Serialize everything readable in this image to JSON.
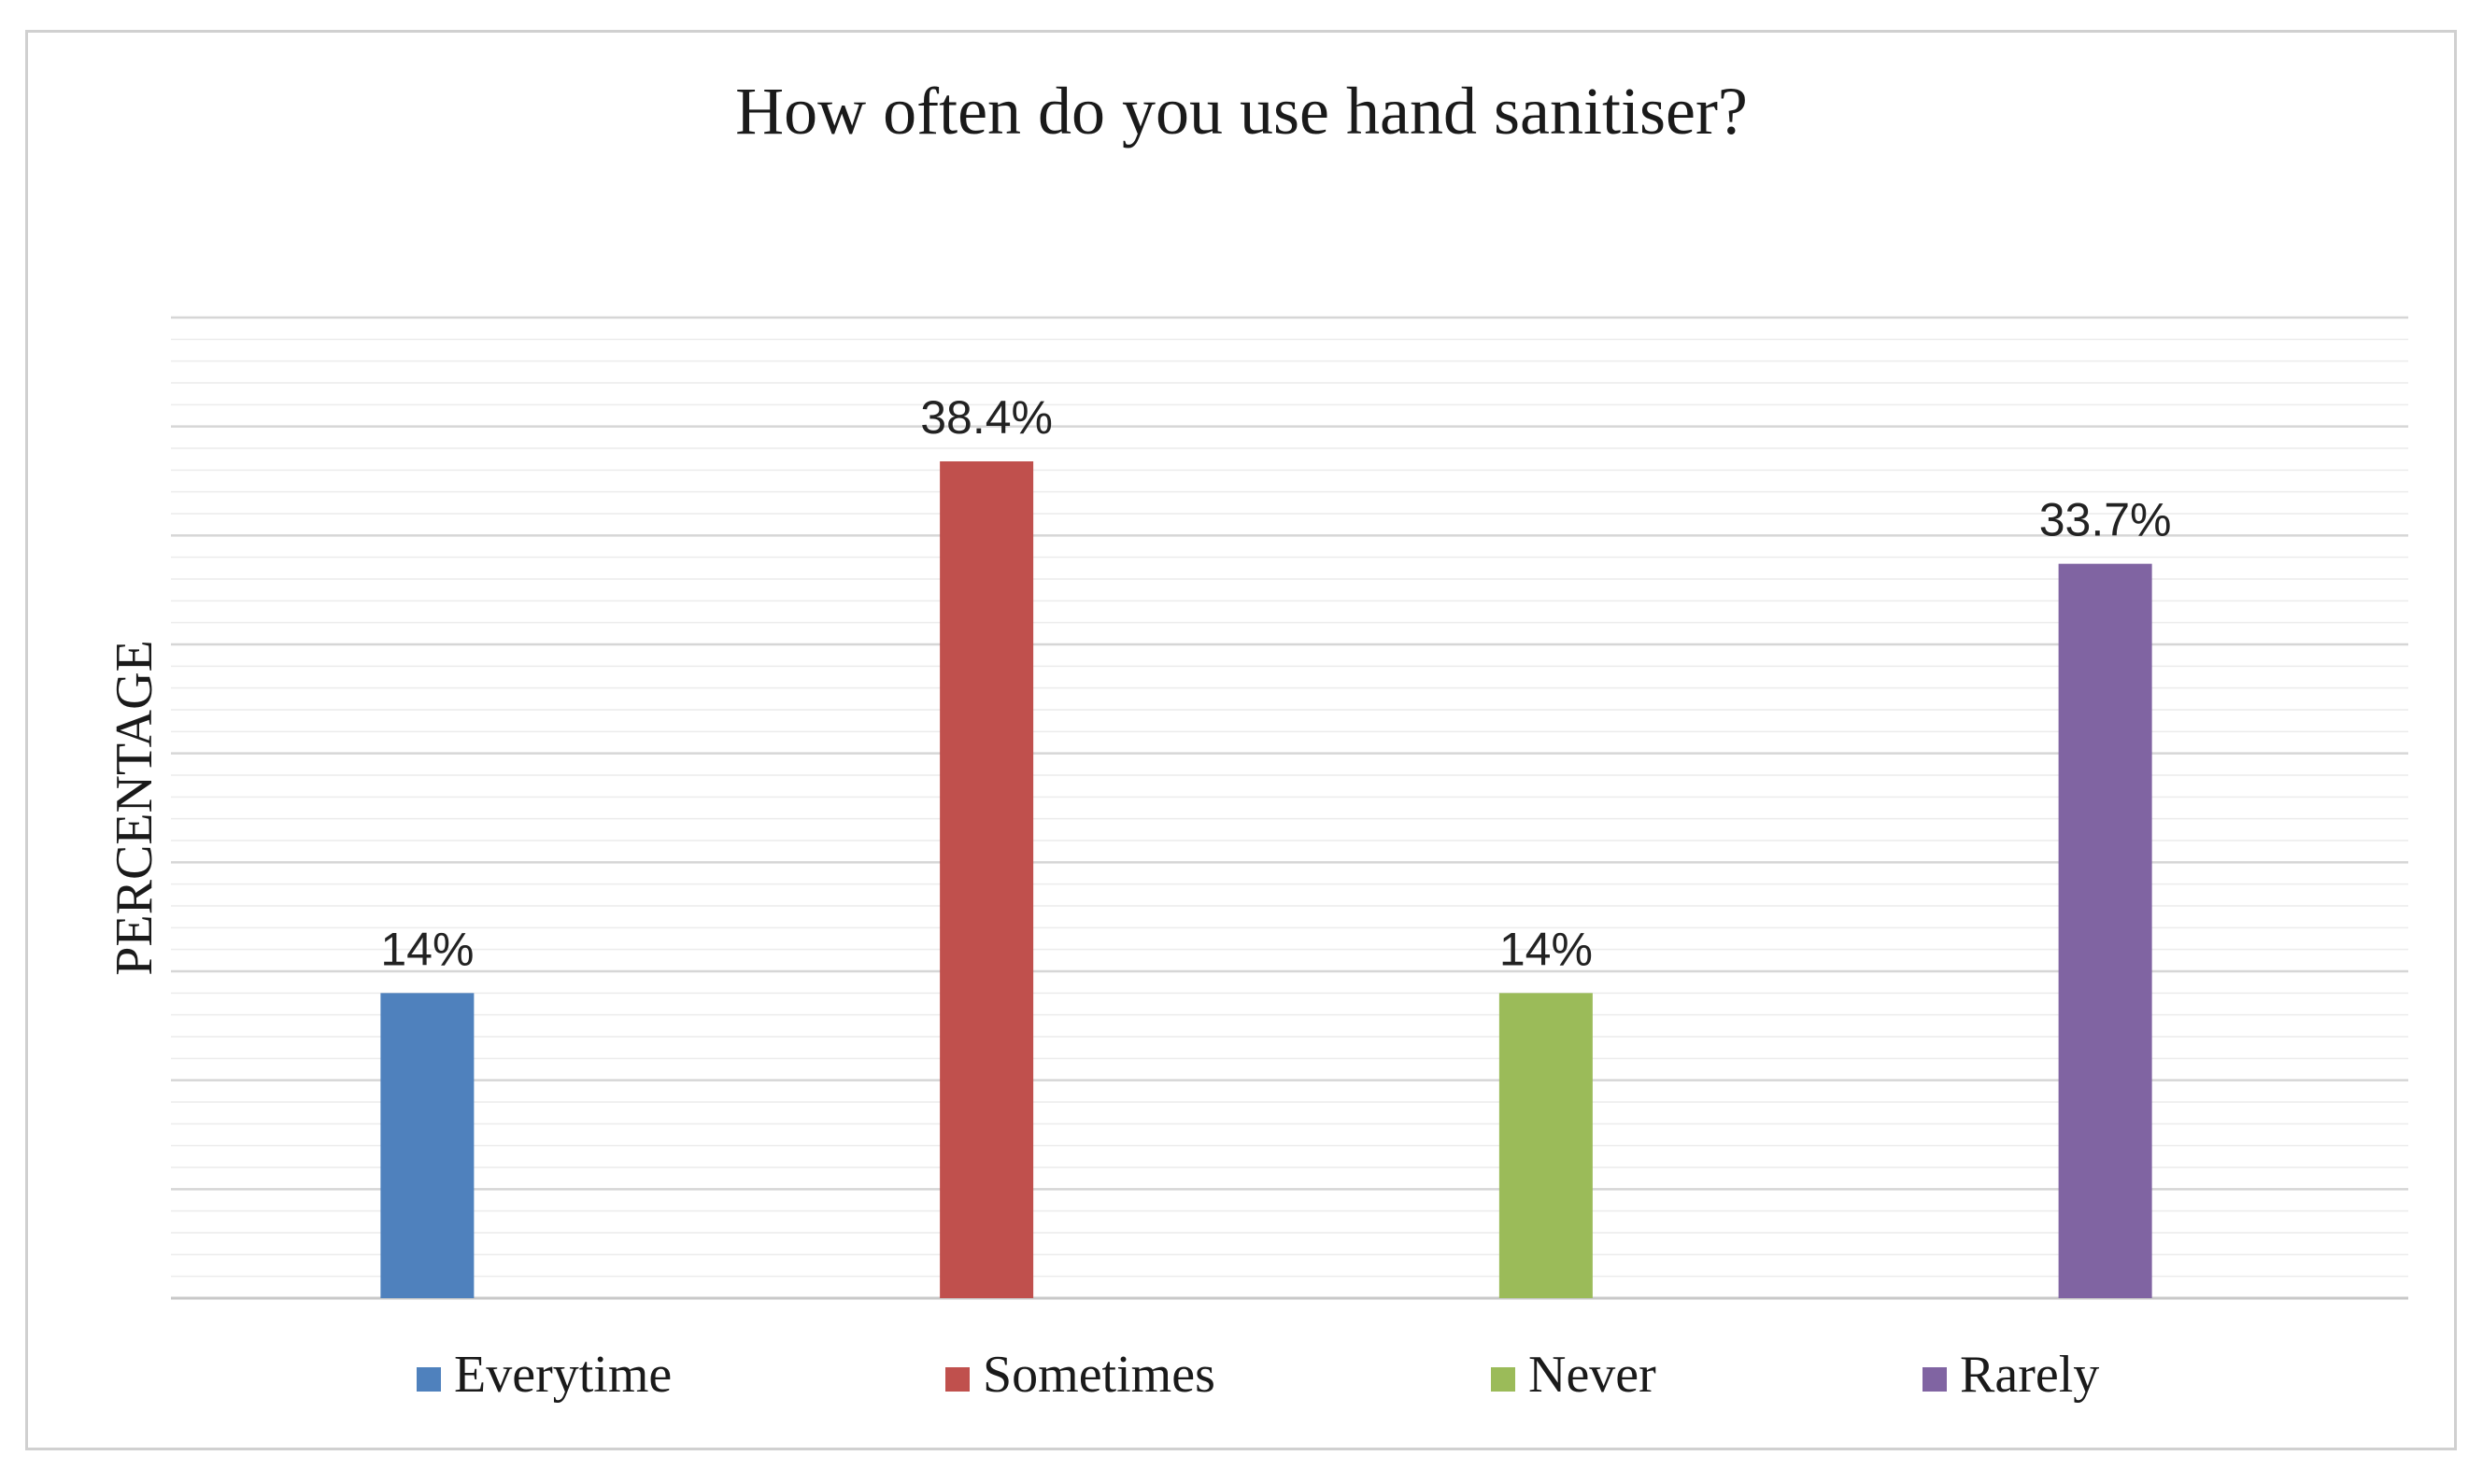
{
  "chart_data": {
    "type": "bar",
    "title": "How often do you use hand sanitiser?",
    "xlabel": "",
    "ylabel": "PERCENTAGE",
    "categories": [
      "Everytime",
      "Sometimes",
      "Never",
      "Rarely"
    ],
    "values": [
      14,
      38.4,
      14,
      33.7
    ],
    "data_labels": [
      "14%",
      "38.4%",
      "14%",
      "33.7%"
    ],
    "colors": [
      "#4f81bd",
      "#c0504d",
      "#9bbb59",
      "#8064a2"
    ],
    "ylim": [
      0,
      45
    ],
    "grid": true,
    "legend": "bottom"
  }
}
